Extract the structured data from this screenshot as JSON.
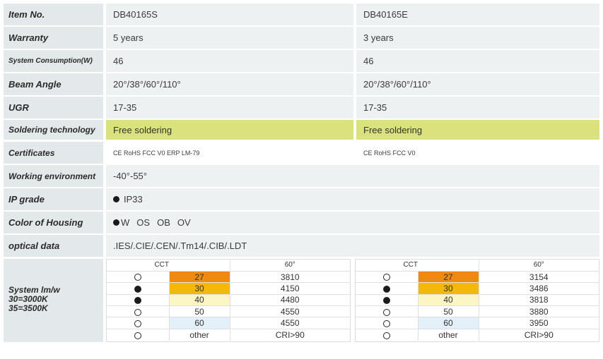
{
  "rows": [
    {
      "key": "item_no",
      "label": "Item No.",
      "a": "DB40165S",
      "b": "DB40165E"
    },
    {
      "key": "warranty",
      "label": "Warranty",
      "a": "5 years",
      "b": "3 years"
    },
    {
      "key": "consumption",
      "label": "System Consumption(W)",
      "a": "46",
      "b": "46"
    },
    {
      "key": "beam",
      "label": "Beam Angle",
      "a": "20°/38°/60°/110°",
      "b": "20°/38°/60°/110°"
    },
    {
      "key": "ugr",
      "label": "UGR",
      "a": "17-35",
      "b": "17-35"
    },
    {
      "key": "soldering",
      "label": "Soldering technology",
      "a": "Free soldering",
      "b": "Free soldering"
    },
    {
      "key": "certs",
      "label": "Certificates",
      "a": "CE RoHS FCC V0 ERP  LM-79",
      "b": "CE RoHS FCC V0"
    },
    {
      "key": "env",
      "label": "Working environment",
      "full": "-40°-55°"
    },
    {
      "key": "ip",
      "label": "IP grade",
      "full": "IP33"
    },
    {
      "key": "housing",
      "label": "Color of Housing",
      "options": [
        "W",
        "OS",
        "OB",
        "OV"
      ]
    },
    {
      "key": "optical",
      "label": "optical data",
      "full": ".IES/.CIE/.CEN/.Tm14/.CIB/.LDT"
    }
  ],
  "system": {
    "label_lines": [
      "System lm/w",
      "30=3000K",
      "35=3500K"
    ],
    "headers": {
      "cct": "CCT",
      "angle": "60°"
    },
    "panels": [
      {
        "rows": [
          {
            "selected": false,
            "cct": "27",
            "value": "3810",
            "color": "#ee8a10"
          },
          {
            "selected": true,
            "cct": "30",
            "value": "4150",
            "color": "#f3b80c"
          },
          {
            "selected": true,
            "cct": "40",
            "value": "4480",
            "color": "#fbf6c3"
          },
          {
            "selected": false,
            "cct": "50",
            "value": "4550",
            "color": "#ffffff"
          },
          {
            "selected": false,
            "cct": "60",
            "value": "4550",
            "color": "#e3f0fa"
          },
          {
            "selected": false,
            "cct": "other",
            "value": "CRI>90",
            "color": "#ffffff"
          }
        ]
      },
      {
        "rows": [
          {
            "selected": false,
            "cct": "27",
            "value": "3154",
            "color": "#ee8a10"
          },
          {
            "selected": true,
            "cct": "30",
            "value": "3486",
            "color": "#f3b80c"
          },
          {
            "selected": true,
            "cct": "40",
            "value": "3818",
            "color": "#fbf6c3"
          },
          {
            "selected": false,
            "cct": "50",
            "value": "3880",
            "color": "#ffffff"
          },
          {
            "selected": false,
            "cct": "60",
            "value": "3950",
            "color": "#e3f0fa"
          },
          {
            "selected": false,
            "cct": "other",
            "value": "CRI>90",
            "color": "#ffffff"
          }
        ]
      }
    ]
  }
}
